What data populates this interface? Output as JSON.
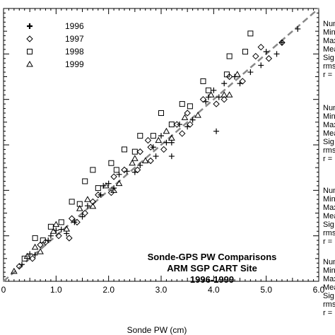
{
  "chart_data": {
    "type": "scatter",
    "title_lines": [
      "Sonde-GPS PW Comparisons",
      "ARM SGP CART Site",
      "1996-1999"
    ],
    "xlabel": "Sonde PW (cm)",
    "ylabel": "",
    "xlim": [
      0.0,
      6.0
    ],
    "ylim": [
      0.0,
      6.0
    ],
    "x_ticks": [
      "0",
      "1.0",
      "2.0",
      "3.0",
      "4.0",
      "5.0",
      "6.0"
    ],
    "x_tick_values": [
      0,
      1,
      2,
      3,
      4,
      5,
      6
    ],
    "grid": false,
    "legend_position": "top-left",
    "reference_line": {
      "style": "dashed",
      "color": "#888888",
      "from": [
        0,
        0
      ],
      "to": [
        6,
        6
      ]
    },
    "series": [
      {
        "name": "1996",
        "marker": "plus",
        "x": [
          0.35,
          0.6,
          0.85,
          1.1,
          1.35,
          1.6,
          1.85,
          2.1,
          2.35,
          2.6,
          2.85,
          3.1,
          3.35,
          3.6,
          3.85,
          4.1,
          4.4,
          4.7,
          5.0,
          5.3,
          5.6,
          0.5,
          1.0,
          1.5,
          2.0,
          2.5,
          3.0,
          3.5,
          4.0,
          4.5,
          1.2,
          2.2,
          3.2,
          4.2,
          5.2,
          0.9,
          1.9,
          2.9,
          3.9,
          4.9,
          3.2,
          4.05
        ],
        "y": [
          0.37,
          0.58,
          0.9,
          1.14,
          1.3,
          1.66,
          1.9,
          2.05,
          2.42,
          2.55,
          2.95,
          3.05,
          3.45,
          3.55,
          3.95,
          4.05,
          4.5,
          4.6,
          5.05,
          5.25,
          5.55,
          0.6,
          1.12,
          1.42,
          2.15,
          2.4,
          3.2,
          3.4,
          4.2,
          4.35,
          1.05,
          2.35,
          3.05,
          4.35,
          5.0,
          1.0,
          2.1,
          2.75,
          4.05,
          4.75,
          2.75,
          3.3
        ]
      },
      {
        "name": "1997",
        "marker": "diamond",
        "x": [
          0.3,
          0.55,
          0.8,
          1.05,
          1.3,
          1.55,
          1.8,
          2.05,
          2.3,
          2.55,
          2.8,
          3.05,
          3.3,
          3.55,
          3.8,
          4.05,
          4.3,
          4.55,
          4.8,
          5.05,
          5.3,
          0.7,
          1.4,
          2.1,
          2.8,
          3.5,
          4.2,
          4.9,
          1.7,
          2.6,
          3.4,
          1.25,
          2.75
        ],
        "y": [
          0.33,
          0.5,
          0.86,
          1.0,
          1.38,
          1.5,
          1.9,
          1.95,
          2.45,
          2.45,
          2.95,
          2.9,
          3.45,
          3.45,
          4.0,
          3.9,
          4.5,
          4.4,
          4.95,
          4.9,
          5.25,
          0.8,
          1.3,
          2.3,
          2.65,
          3.7,
          4.0,
          5.15,
          1.75,
          2.85,
          3.25,
          0.95,
          3.1
        ]
      },
      {
        "name": "1998",
        "marker": "square",
        "x": [
          0.4,
          0.75,
          1.1,
          1.45,
          1.8,
          2.15,
          2.5,
          2.85,
          3.2,
          3.55,
          3.9,
          4.25,
          4.6,
          0.9,
          1.3,
          1.7,
          2.3,
          2.6,
          3.0,
          3.4,
          3.8,
          4.3,
          4.7,
          1.55,
          2.05,
          0.6
        ],
        "y": [
          0.5,
          0.9,
          1.3,
          1.7,
          2.05,
          2.45,
          2.85,
          3.2,
          3.45,
          3.85,
          4.2,
          4.55,
          5.05,
          1.2,
          1.75,
          2.45,
          2.9,
          3.2,
          3.7,
          3.9,
          4.4,
          4.95,
          5.45,
          2.2,
          2.6,
          0.95
        ]
      },
      {
        "name": "1999",
        "marker": "triangle",
        "x": [
          0.2,
          0.45,
          0.7,
          0.95,
          1.2,
          1.45,
          1.7,
          1.95,
          2.2,
          2.45,
          2.7,
          2.95,
          3.2,
          3.45,
          3.7,
          3.95,
          4.2,
          4.45,
          0.6,
          1.0,
          1.6,
          2.1,
          2.5,
          3.1,
          4.3
        ],
        "y": [
          0.22,
          0.55,
          0.65,
          1.1,
          1.15,
          1.6,
          1.65,
          2.1,
          2.15,
          2.6,
          2.65,
          3.1,
          3.15,
          3.6,
          3.65,
          4.1,
          4.1,
          4.55,
          0.75,
          1.25,
          1.8,
          2.0,
          2.7,
          3.3,
          4.1
        ]
      }
    ]
  },
  "side_panel": {
    "blocks": [
      [
        "Num",
        "Min",
        "Max",
        "Mea",
        "Sig",
        "rms",
        "r ="
      ],
      [
        "Num",
        "Min",
        "Max",
        "Mea",
        "Sig",
        "rms",
        "r ="
      ],
      [
        "Num",
        "Min",
        "Max",
        "Mea",
        "Sig",
        "rms",
        "r ="
      ],
      [
        "Num",
        "Min",
        "Max",
        "Mea",
        "Sig",
        "rms",
        "r ="
      ]
    ]
  },
  "colors": {
    "marker": "#000000",
    "reference_line": "#888888",
    "axis": "#000000"
  }
}
